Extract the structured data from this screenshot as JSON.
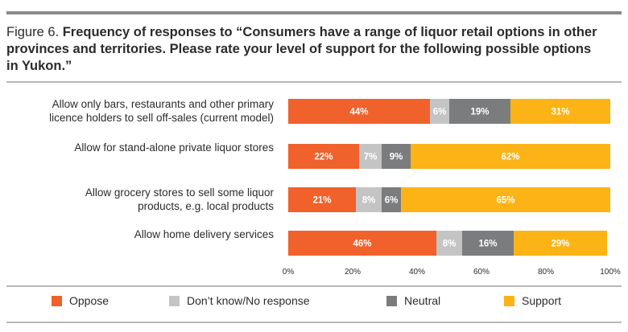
{
  "figure": {
    "label": "Figure 6.",
    "title": "Frequency of responses to “Consumers have a range of liquor retail options in other provinces and territories. Please rate your level of support for the following possible options in Yukon.”"
  },
  "chart_data": {
    "type": "bar",
    "orientation": "horizontal",
    "stacked": true,
    "categories": [
      [
        "Allow only bars, restaurants and other primary",
        "licence holders to sell off-sales (current model)"
      ],
      [
        "Allow for stand-alone private liquor stores"
      ],
      [
        "Allow grocery stores to sell some liquor",
        "products, e.g. local products"
      ],
      [
        "Allow home delivery services"
      ]
    ],
    "series": [
      {
        "name": "Oppose",
        "color": "#f0612b",
        "values": [
          44,
          22,
          21,
          46
        ]
      },
      {
        "name": "Don’t know/No response",
        "color": "#c4c4c4",
        "values": [
          6,
          7,
          8,
          8
        ]
      },
      {
        "name": "Neutral",
        "color": "#7b7c7e",
        "values": [
          19,
          9,
          6,
          16
        ]
      },
      {
        "name": "Support",
        "color": "#fcb315",
        "values": [
          31,
          62,
          65,
          29
        ]
      }
    ],
    "xlim": [
      0,
      100
    ],
    "xticks": [
      "0%",
      "20%",
      "40%",
      "60%",
      "80%",
      "100%"
    ],
    "legend_position": "bottom",
    "grid": false
  }
}
